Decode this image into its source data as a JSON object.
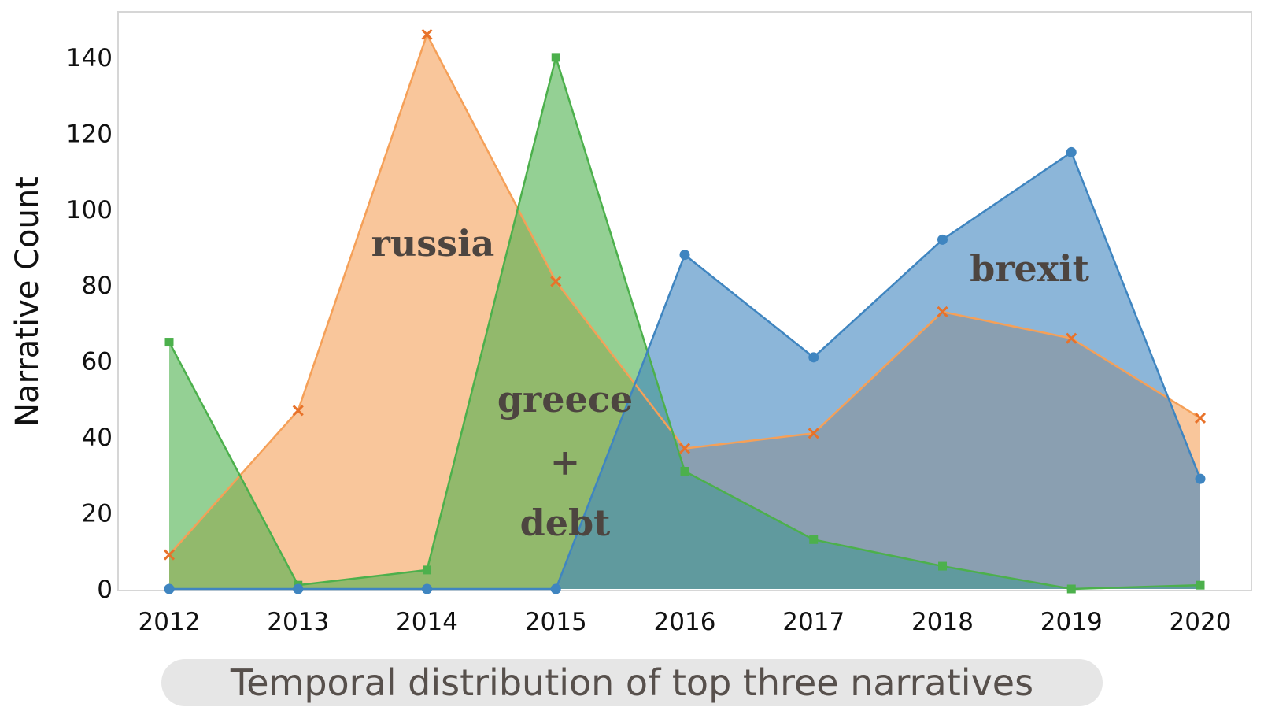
{
  "chart_data": {
    "type": "area",
    "title": "",
    "xlabel": "",
    "ylabel": "Narrative Count",
    "caption": "Temporal distribution of top three narratives",
    "x": [
      2012,
      2013,
      2014,
      2015,
      2016,
      2017,
      2018,
      2019,
      2020
    ],
    "ylim": [
      0,
      152
    ],
    "yticks": [
      0,
      20,
      40,
      60,
      80,
      100,
      120,
      140
    ],
    "grid": false,
    "legend": "none",
    "series": [
      {
        "name": "russia",
        "color": "#f5a058",
        "marker": "x",
        "values": [
          9,
          47,
          146,
          81,
          37,
          41,
          73,
          66,
          45
        ]
      },
      {
        "name": "greece + debt",
        "color": "#4cb04c",
        "marker": "square",
        "values": [
          65,
          1,
          5,
          140,
          31,
          13,
          6,
          0,
          1
        ]
      },
      {
        "name": "brexit",
        "color": "#3f85c0",
        "marker": "circle",
        "values": [
          0,
          0,
          0,
          0,
          88,
          61,
          92,
          115,
          29
        ]
      }
    ],
    "annotations": {
      "russia": "russia",
      "greece": "greece",
      "plus": "+",
      "debt": "debt",
      "brexit": "brexit"
    }
  }
}
